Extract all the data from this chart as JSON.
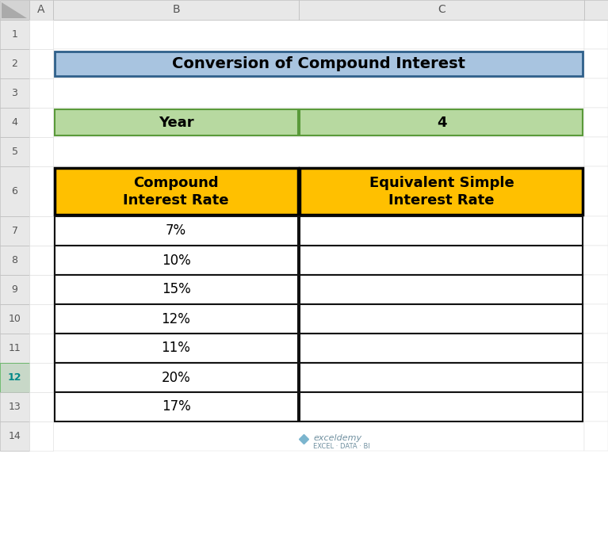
{
  "title": "Conversion of Compound Interest",
  "year_label": "Year",
  "year_value": "4",
  "col1_header_line1": "Compound",
  "col1_header_line2": "Interest Rate",
  "col2_header_line1": "Equivalent Simple",
  "col2_header_line2": "Interest Rate",
  "data_col1": [
    "7%",
    "10%",
    "15%",
    "12%",
    "11%",
    "20%",
    "17%"
  ],
  "title_bg": "#a8c4e0",
  "title_border": "#2e5f8a",
  "year_bg": "#b7d9a0",
  "year_border": "#5a9a3a",
  "header_bg": "#ffc000",
  "header_border": "#000000",
  "data_bg": "#ffffff",
  "data_border": "#111111",
  "rownum_bg": "#e8e8e8",
  "rownum_fg": "#555555",
  "colhdr_bg": "#e8e8e8",
  "colhdr_fg": "#555555",
  "grid_bg": "#ffffff",
  "row12_rn_bg": "#c8d8c8",
  "row12_rn_border": "#3a8a3a",
  "row12_rn_fg": "#008888",
  "watermark_color": "#8ab4d0",
  "watermark_text_color": "#7090a0"
}
